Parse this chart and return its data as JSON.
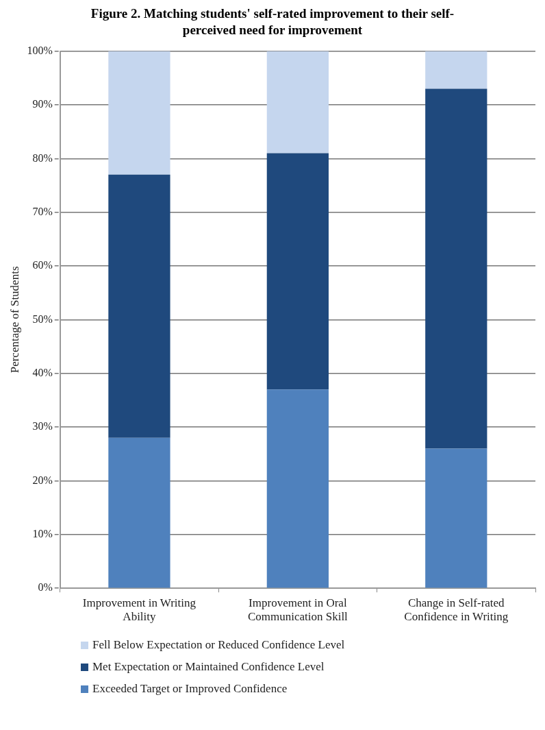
{
  "chart_data": {
    "type": "bar",
    "title": "Figure 2. Matching students' self-rated improvement to their self-perceived need for improvement",
    "ylabel": "Percentage of Students",
    "categories": [
      "Improvement in Writing Ability",
      "Improvement in Oral Communication Skill",
      "Change in Self-rated Confidence in Writing"
    ],
    "stacked": true,
    "series": [
      {
        "name": "Exceeded Target or Improved Confidence",
        "color": "#4f81bd",
        "values": [
          28,
          37,
          26
        ]
      },
      {
        "name": "Met Expectation or Maintained Confidence Level",
        "color": "#1f497d",
        "values": [
          49,
          44,
          67
        ]
      },
      {
        "name": "Fell Below Expectation or Reduced Confidence Level",
        "color": "#c5d6ee",
        "values": [
          23,
          19,
          7
        ]
      }
    ],
    "ylim": [
      0,
      100
    ],
    "yticks": [
      {
        "value": 0,
        "label": "0%"
      },
      {
        "value": 10,
        "label": "10%"
      },
      {
        "value": 20,
        "label": "20%"
      },
      {
        "value": 30,
        "label": "30%"
      },
      {
        "value": 40,
        "label": "40%"
      },
      {
        "value": 50,
        "label": "50%"
      },
      {
        "value": 60,
        "label": "60%"
      },
      {
        "value": 70,
        "label": "70%"
      },
      {
        "value": 80,
        "label": "80%"
      },
      {
        "value": 90,
        "label": "90%"
      },
      {
        "value": 100,
        "label": "100%"
      }
    ],
    "grid": "y",
    "legend": "bottom"
  }
}
